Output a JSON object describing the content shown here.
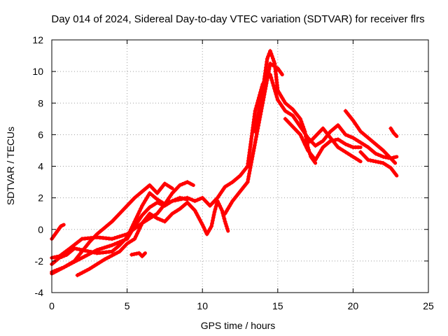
{
  "chart_data": {
    "type": "scatter",
    "title": "Day 014 of 2024, Sidereal Day-to-day VTEC variation (SDTVAR) for receiver flrs",
    "xlabel": "GPS time / hours",
    "ylabel": "SDTVAR / TECUs",
    "xlim": [
      0,
      25
    ],
    "ylim": [
      -4,
      12
    ],
    "xticks": [
      0,
      5,
      10,
      15,
      20,
      25
    ],
    "yticks": [
      -4,
      -2,
      0,
      2,
      4,
      6,
      8,
      10,
      12
    ],
    "grid": true,
    "marker": "+",
    "color": "#ff0000",
    "series": [
      {
        "points": [
          [
            0,
            -0.6
          ],
          [
            0.3,
            -0.2
          ],
          [
            0.6,
            0.2
          ],
          [
            0.8,
            0.3
          ]
        ]
      },
      {
        "points": [
          [
            0,
            -1.8
          ],
          [
            0.5,
            -1.7
          ],
          [
            1.2,
            -1.2
          ],
          [
            2,
            -0.6
          ],
          [
            3,
            -0.5
          ],
          [
            4,
            -0.6
          ],
          [
            5,
            -0.3
          ],
          [
            6,
            0.4
          ],
          [
            7,
            1.0
          ],
          [
            7.5,
            1.6
          ],
          [
            8,
            1.8
          ],
          [
            9,
            2.0
          ],
          [
            9.5,
            1.8
          ],
          [
            10,
            2.0
          ],
          [
            10.5,
            1.5
          ],
          [
            11,
            2.0
          ],
          [
            11.5,
            2.7
          ],
          [
            12,
            3.0
          ],
          [
            12.5,
            3.4
          ],
          [
            13,
            4.0
          ],
          [
            13.5,
            7.5
          ],
          [
            14,
            9.2
          ],
          [
            14.5,
            9.8
          ],
          [
            15,
            8.2
          ],
          [
            15.5,
            7.5
          ],
          [
            16,
            7.2
          ],
          [
            16.5,
            6.5
          ],
          [
            17,
            5.8
          ],
          [
            17.5,
            5.3
          ],
          [
            18,
            5.6
          ],
          [
            18.5,
            6.2
          ],
          [
            19,
            6.6
          ],
          [
            19.5,
            6.0
          ],
          [
            20,
            5.8
          ],
          [
            20.5,
            5.5
          ],
          [
            21,
            5.2
          ],
          [
            21.5,
            4.8
          ],
          [
            22,
            4.6
          ],
          [
            22.5,
            4.5
          ],
          [
            22.9,
            4.6
          ]
        ]
      },
      {
        "points": [
          [
            0,
            -2.2
          ],
          [
            0.5,
            -1.8
          ],
          [
            1,
            -1.6
          ],
          [
            1.5,
            -1.2
          ],
          [
            2,
            -1.3
          ],
          [
            3,
            -1.5
          ],
          [
            4,
            -1.4
          ],
          [
            4.5,
            -1.0
          ],
          [
            5,
            -0.5
          ],
          [
            5.5,
            0.5
          ],
          [
            6,
            1.5
          ],
          [
            6.5,
            2.3
          ],
          [
            7,
            1.9
          ],
          [
            7.5,
            1.6
          ],
          [
            8,
            2.3
          ],
          [
            8.5,
            2.8
          ],
          [
            9,
            3.0
          ],
          [
            9.4,
            2.8
          ]
        ]
      },
      {
        "points": [
          [
            0,
            -2.7
          ],
          [
            0.8,
            -2.4
          ],
          [
            1.5,
            -2.0
          ],
          [
            2,
            -1.4
          ],
          [
            2.5,
            -0.8
          ],
          [
            3,
            -0.3
          ],
          [
            3.5,
            0.1
          ],
          [
            4,
            0.5
          ],
          [
            4.5,
            1.0
          ],
          [
            5,
            1.5
          ],
          [
            5.5,
            2.0
          ],
          [
            6,
            2.4
          ],
          [
            6.5,
            2.8
          ],
          [
            7,
            2.3
          ],
          [
            7.5,
            2.9
          ],
          [
            8,
            2.6
          ]
        ]
      },
      {
        "points": [
          [
            0,
            -2.8
          ],
          [
            1,
            -2.3
          ],
          [
            2,
            -1.8
          ],
          [
            3,
            -1.3
          ],
          [
            4,
            -1.0
          ],
          [
            5,
            -0.6
          ],
          [
            5.5,
            0.2
          ],
          [
            6,
            0.9
          ],
          [
            6.5,
            1.4
          ],
          [
            7,
            1.7
          ],
          [
            7.5,
            1.5
          ],
          [
            8,
            1.8
          ],
          [
            8.5,
            2.0
          ],
          [
            9,
            1.9
          ]
        ]
      },
      {
        "points": [
          [
            1.7,
            -2.9
          ],
          [
            2.5,
            -2.5
          ],
          [
            3.5,
            -1.9
          ],
          [
            4.5,
            -1.4
          ],
          [
            5,
            -0.9
          ],
          [
            5.5,
            -0.6
          ],
          [
            6,
            0.4
          ],
          [
            6.5,
            1.0
          ],
          [
            7,
            0.7
          ],
          [
            7.5,
            0.5
          ],
          [
            8,
            1.0
          ],
          [
            8.5,
            1.3
          ],
          [
            9,
            1.7
          ],
          [
            9.5,
            1.2
          ],
          [
            10,
            0.3
          ],
          [
            10.3,
            -0.3
          ],
          [
            10.6,
            0.2
          ],
          [
            10.8,
            1.1
          ],
          [
            11,
            1.8
          ],
          [
            11.3,
            1.2
          ],
          [
            11.5,
            0.5
          ],
          [
            11.7,
            -0.1
          ]
        ]
      },
      {
        "points": [
          [
            5.3,
            -1.6
          ],
          [
            5.8,
            -1.5
          ],
          [
            6,
            -1.7
          ],
          [
            6.2,
            -1.5
          ]
        ]
      },
      {
        "points": [
          [
            11.5,
            1.0
          ],
          [
            12,
            1.8
          ],
          [
            12.5,
            2.4
          ],
          [
            13,
            3.0
          ],
          [
            13.5,
            5.5
          ],
          [
            14,
            8.0
          ],
          [
            14.5,
            10.5
          ],
          [
            15,
            10.2
          ],
          [
            15.3,
            9.8
          ]
        ]
      },
      {
        "points": [
          [
            13.5,
            6.2
          ],
          [
            14,
            8.8
          ],
          [
            14.3,
            10.8
          ],
          [
            14.5,
            11.3
          ],
          [
            14.8,
            10.5
          ],
          [
            15,
            8.8
          ],
          [
            15.5,
            8.0
          ],
          [
            16,
            7.6
          ],
          [
            16.5,
            7.0
          ],
          [
            16.8,
            6.2
          ],
          [
            17,
            5.2
          ],
          [
            17.2,
            4.6
          ],
          [
            17.5,
            4.2
          ]
        ]
      },
      {
        "points": [
          [
            16.8,
            5.4
          ],
          [
            17.2,
            5.6
          ],
          [
            17.6,
            6.0
          ],
          [
            18,
            6.4
          ],
          [
            18.5,
            5.8
          ],
          [
            19,
            5.2
          ],
          [
            19.5,
            4.9
          ],
          [
            20,
            4.6
          ],
          [
            20.5,
            4.3
          ]
        ]
      },
      {
        "points": [
          [
            19.5,
            7.5
          ],
          [
            20,
            6.9
          ],
          [
            20.5,
            6.2
          ],
          [
            21,
            5.8
          ],
          [
            21.5,
            5.4
          ],
          [
            22,
            5.0
          ],
          [
            22.5,
            4.5
          ],
          [
            22.8,
            4.2
          ]
        ]
      },
      {
        "points": [
          [
            20.5,
            4.9
          ],
          [
            21,
            4.4
          ],
          [
            21.5,
            4.3
          ],
          [
            22,
            4.2
          ],
          [
            22.5,
            3.9
          ],
          [
            22.9,
            3.4
          ]
        ]
      },
      {
        "points": [
          [
            22.5,
            6.4
          ],
          [
            22.7,
            6.1
          ],
          [
            22.9,
            5.9
          ]
        ]
      },
      {
        "points": [
          [
            15.5,
            7.0
          ],
          [
            16.5,
            6.0
          ],
          [
            17,
            5.0
          ],
          [
            17.5,
            4.4
          ],
          [
            18,
            5.2
          ],
          [
            18.5,
            5.6
          ],
          [
            19,
            5.7
          ],
          [
            19.5,
            5.4
          ],
          [
            20,
            5.2
          ],
          [
            20.5,
            5.2
          ]
        ]
      }
    ]
  }
}
